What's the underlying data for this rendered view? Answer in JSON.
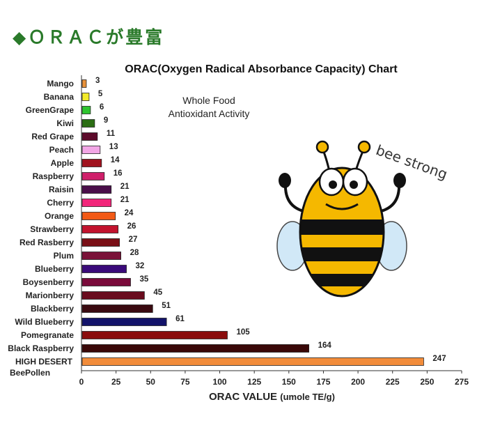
{
  "page": {
    "heading": "◆ＯＲＡＣが豊富",
    "title": "ORAC(Oxygen Radical Absorbance Capacity) Chart",
    "subtitle_line1": "Whole Food",
    "subtitle_line2": "Antioxidant Activity",
    "tagline": "bee strong",
    "xlabel_main": "ORAC VALUE",
    "xlabel_units": "(umole TE/g)"
  },
  "chart_data": {
    "type": "bar",
    "orientation": "horizontal",
    "title": "ORAC(Oxygen Radical Absorbance Capacity) Chart",
    "xlabel": "ORAC VALUE (umole TE/g)",
    "ylabel": "",
    "xlim": [
      0,
      275
    ],
    "xticks": [
      0,
      25,
      50,
      75,
      100,
      125,
      150,
      175,
      200,
      225,
      250,
      275
    ],
    "grid": false,
    "bars": [
      {
        "label": "Mango",
        "value": 3,
        "color": "#e8923a"
      },
      {
        "label": "Banana",
        "value": 5,
        "color": "#f2ea2a"
      },
      {
        "label": "GreenGrape",
        "value": 6,
        "color": "#2ec42e"
      },
      {
        "label": "Kiwi",
        "value": 9,
        "color": "#2b6e14"
      },
      {
        "label": "Red Grape",
        "value": 11,
        "color": "#5c0a2a"
      },
      {
        "label": "Peach",
        "value": 13,
        "color": "#f2a6e6"
      },
      {
        "label": "Apple",
        "value": 14,
        "color": "#a0121e"
      },
      {
        "label": "Raspberry",
        "value": 16,
        "color": "#cf1f6a"
      },
      {
        "label": "Raisin",
        "value": 21,
        "color": "#4a0f4a"
      },
      {
        "label": "Cherry",
        "value": 21,
        "color": "#f2267a"
      },
      {
        "label": "Orange",
        "value": 24,
        "color": "#f25a16"
      },
      {
        "label": "Strawberry",
        "value": 26,
        "color": "#c2132e"
      },
      {
        "label": "Red Rasberry",
        "value": 27,
        "color": "#7a0f16"
      },
      {
        "label": "Plum",
        "value": 28,
        "color": "#7a1238"
      },
      {
        "label": "Blueberry",
        "value": 32,
        "color": "#3a0a7a"
      },
      {
        "label": "Boysenberry",
        "value": 35,
        "color": "#7a0a3a"
      },
      {
        "label": "Marionberry",
        "value": 45,
        "color": "#6a0c1e"
      },
      {
        "label": "Blackberry",
        "value": 51,
        "color": "#3a0a10"
      },
      {
        "label": "Wild Blueberry",
        "value": 61,
        "color": "#13136a"
      },
      {
        "label": "Pomegranate",
        "value": 105,
        "color": "#8a0d0d"
      },
      {
        "label": "Black Raspberry",
        "value": 164,
        "color": "#3a0808"
      },
      {
        "label": "HIGH DESERT BeePollen",
        "label_line1": "HIGH DESERT",
        "label_line2": "BeePollen",
        "value": 247,
        "color": "#f28c3a"
      }
    ]
  }
}
